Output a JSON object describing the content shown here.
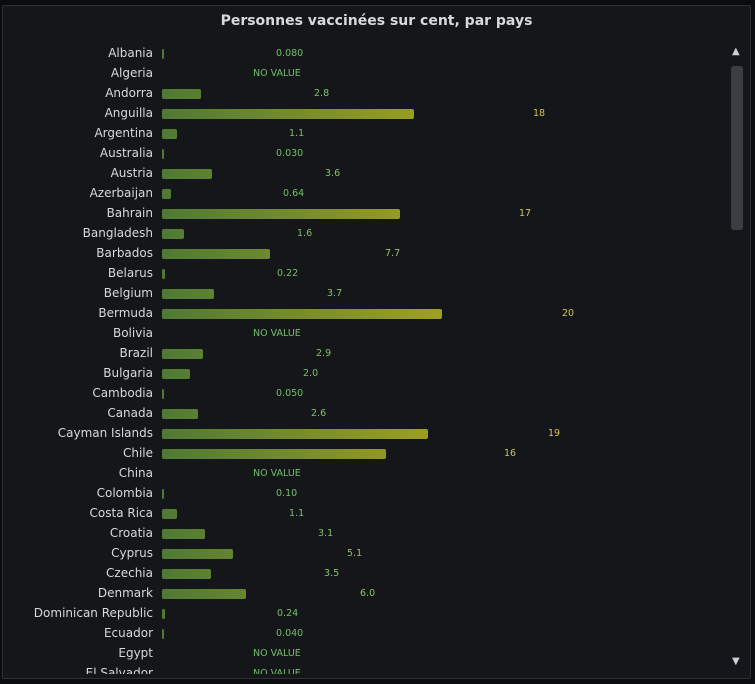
{
  "title": "Personnes vaccinées sur cent, par pays",
  "no_value_text": "NO VALUE",
  "colors": {
    "low": "#4f7a35",
    "high": "#a0a020",
    "text_low": "#73bf69",
    "text_high": "#d8c850"
  },
  "chart_data": {
    "type": "bar",
    "orientation": "horizontal",
    "title": "Personnes vaccinées sur cent, par pays",
    "xlim": [
      0,
      35
    ],
    "categories": [
      "Albania",
      "Algeria",
      "Andorra",
      "Anguilla",
      "Argentina",
      "Australia",
      "Austria",
      "Azerbaijan",
      "Bahrain",
      "Bangladesh",
      "Barbados",
      "Belarus",
      "Belgium",
      "Bermuda",
      "Bolivia",
      "Brazil",
      "Bulgaria",
      "Cambodia",
      "Canada",
      "Cayman Islands",
      "Chile",
      "China",
      "Colombia",
      "Costa Rica",
      "Croatia",
      "Cyprus",
      "Czechia",
      "Denmark",
      "Dominican Republic",
      "Ecuador",
      "Egypt",
      "El Salvador"
    ],
    "values": [
      0.08,
      null,
      2.8,
      18,
      1.1,
      0.03,
      3.6,
      0.64,
      17,
      1.6,
      7.7,
      0.22,
      3.7,
      20,
      null,
      2.9,
      2.0,
      0.05,
      2.6,
      19,
      16,
      null,
      0.1,
      1.1,
      3.1,
      5.1,
      3.5,
      6.0,
      0.24,
      0.04,
      null,
      null
    ],
    "value_labels": [
      "0.080",
      "NO VALUE",
      "2.8",
      "18",
      "1.1",
      "0.030",
      "3.6",
      "0.64",
      "17",
      "1.6",
      "7.7",
      "0.22",
      "3.7",
      "20",
      "NO VALUE",
      "2.9",
      "2.0",
      "0.050",
      "2.6",
      "19",
      "16",
      "NO VALUE",
      "0.10",
      "1.1",
      "3.1",
      "5.1",
      "3.5",
      "6.0",
      "0.24",
      "0.040",
      "NO VALUE",
      "NO VALUE"
    ]
  }
}
